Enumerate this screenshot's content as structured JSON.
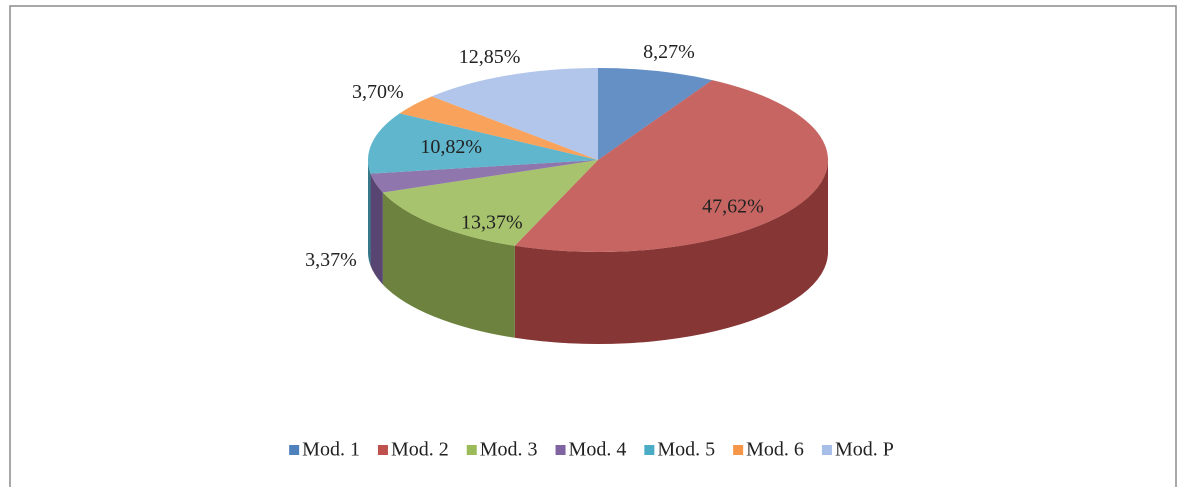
{
  "chart_data": {
    "type": "pie3d",
    "categories": [
      "Mod. 1",
      "Mod. 2",
      "Mod. 3",
      "Mod. 4",
      "Mod. 5",
      "Mod. 6",
      "Mod. P"
    ],
    "values": [
      8.27,
      47.62,
      13.37,
      3.37,
      10.82,
      3.7,
      12.85
    ],
    "value_labels": [
      "8,27%",
      "47,62%",
      "13,37%",
      "3,37%",
      "10,82%",
      "3,70%",
      "12,85%"
    ],
    "colors": [
      "#4f81bd",
      "#c0504d",
      "#9bbb59",
      "#8064a2",
      "#4bacc6",
      "#f79646",
      "#a7bfe8"
    ],
    "legend": "bottom"
  }
}
